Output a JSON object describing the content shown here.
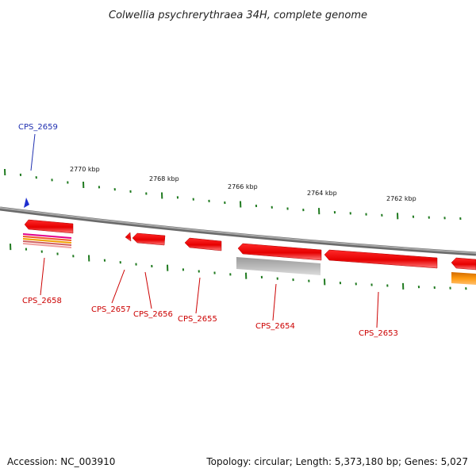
{
  "header": {
    "title": "Colwellia psychrerythraea 34H, complete genome"
  },
  "footer": {
    "accession": "Accession: NC_003910",
    "summary": "Topology: circular; Length: 5,373,180 bp; Genes: 5,027"
  },
  "colors": {
    "backbone": "#8c8c8c",
    "tick": "#1f7a1f",
    "gene_forward_red": "#e60000",
    "gene_label_red": "#cc0000",
    "gene_label_blue": "#1f2fb0",
    "blue_marker": "#1f2fd0",
    "gray_feature": "#b4b4b4",
    "orange_feature": "#f08c00",
    "pink_feature": "#e0008c"
  },
  "scale_labels": [
    "2770 kbp",
    "2768 kbp",
    "2766 kbp",
    "2764 kbp",
    "2762 kbp"
  ],
  "genes": [
    {
      "id": "CPS_2659",
      "color": "blue"
    },
    {
      "id": "CPS_2658",
      "color": "red"
    },
    {
      "id": "CPS_2657",
      "color": "red"
    },
    {
      "id": "CPS_2656",
      "color": "red"
    },
    {
      "id": "CPS_2655",
      "color": "red"
    },
    {
      "id": "CPS_2654",
      "color": "red"
    },
    {
      "id": "CPS_2653",
      "color": "red"
    }
  ]
}
